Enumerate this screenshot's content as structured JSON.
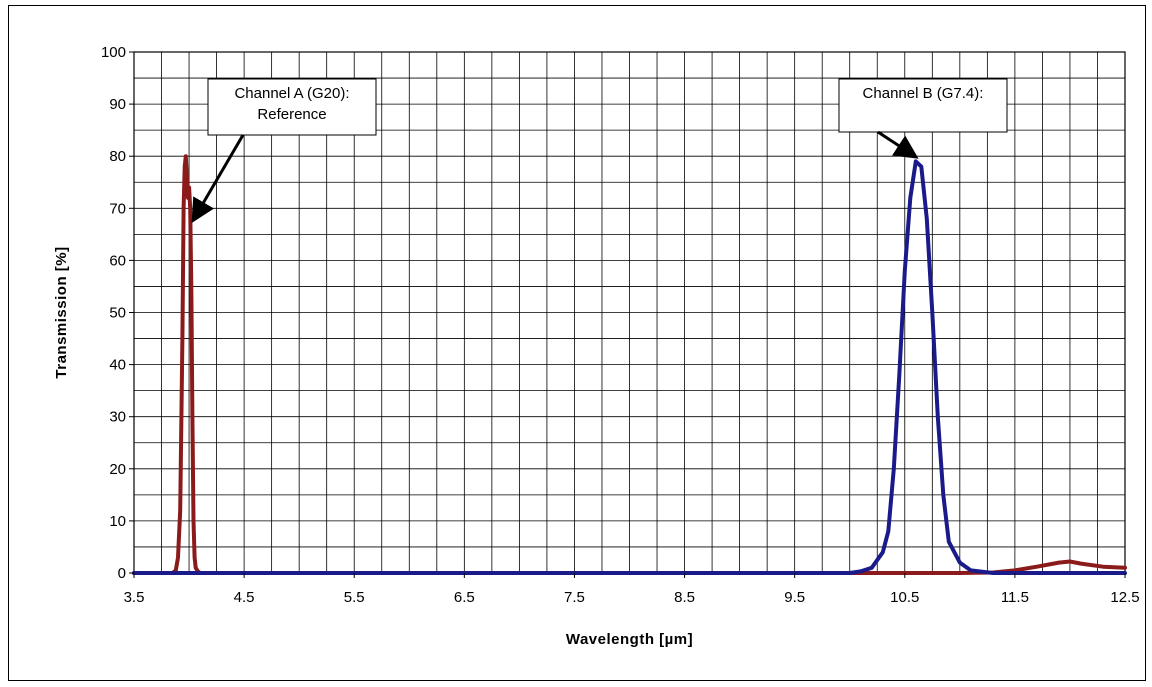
{
  "chart_data": {
    "type": "line",
    "title": "",
    "xlabel": "Wavelength [µm]",
    "ylabel": "Transmission [%]",
    "xlim": [
      3.5,
      12.5
    ],
    "ylim": [
      0,
      100
    ],
    "x_tick_labels": [
      "3.5",
      "4.5",
      "5.5",
      "6.5",
      "7.5",
      "8.5",
      "9.5",
      "10.5",
      "11.5",
      "12.5"
    ],
    "y_tick_labels": [
      "0",
      "10",
      "20",
      "30",
      "40",
      "50",
      "60",
      "70",
      "80",
      "90",
      "100"
    ],
    "grid": true,
    "legend": "none",
    "series": [
      {
        "color": "#8b1a1a",
        "x": [
          3.5,
          3.85,
          3.88,
          3.9,
          3.92,
          3.94,
          3.95,
          3.96,
          3.97,
          3.98,
          3.99,
          4.0,
          4.01,
          4.02,
          4.03,
          4.04,
          4.05,
          4.06,
          4.08,
          4.1,
          4.15,
          5.0,
          11.0,
          11.3,
          11.5,
          11.7,
          11.9,
          12.0,
          12.1,
          12.3,
          12.5
        ],
        "y": [
          0,
          0,
          0.5,
          3,
          12,
          45,
          70,
          78,
          80,
          76,
          72,
          74,
          70,
          55,
          30,
          10,
          3,
          1,
          0.3,
          0,
          0,
          0,
          0,
          0.1,
          0.5,
          1.2,
          2,
          2.2,
          1.8,
          1.2,
          1
        ]
      },
      {
        "color": "#1a1a8b",
        "x": [
          3.5,
          10.0,
          10.1,
          10.2,
          10.3,
          10.35,
          10.4,
          10.45,
          10.5,
          10.55,
          10.6,
          10.65,
          10.7,
          10.75,
          10.8,
          10.85,
          10.9,
          11.0,
          11.1,
          11.3,
          12.5
        ],
        "y": [
          0,
          0,
          0.3,
          1,
          4,
          8,
          20,
          38,
          58,
          72,
          79,
          78,
          68,
          50,
          30,
          15,
          6,
          2,
          0.5,
          0,
          0
        ]
      }
    ],
    "annotations": [
      {
        "text_lines": [
          "Channel A (G20):",
          "Reference"
        ],
        "points_to": [
          4.05,
          67
        ]
      },
      {
        "text_lines": [
          "Channel B (G7.4):"
        ],
        "points_to": [
          10.58,
          79
        ]
      }
    ]
  }
}
